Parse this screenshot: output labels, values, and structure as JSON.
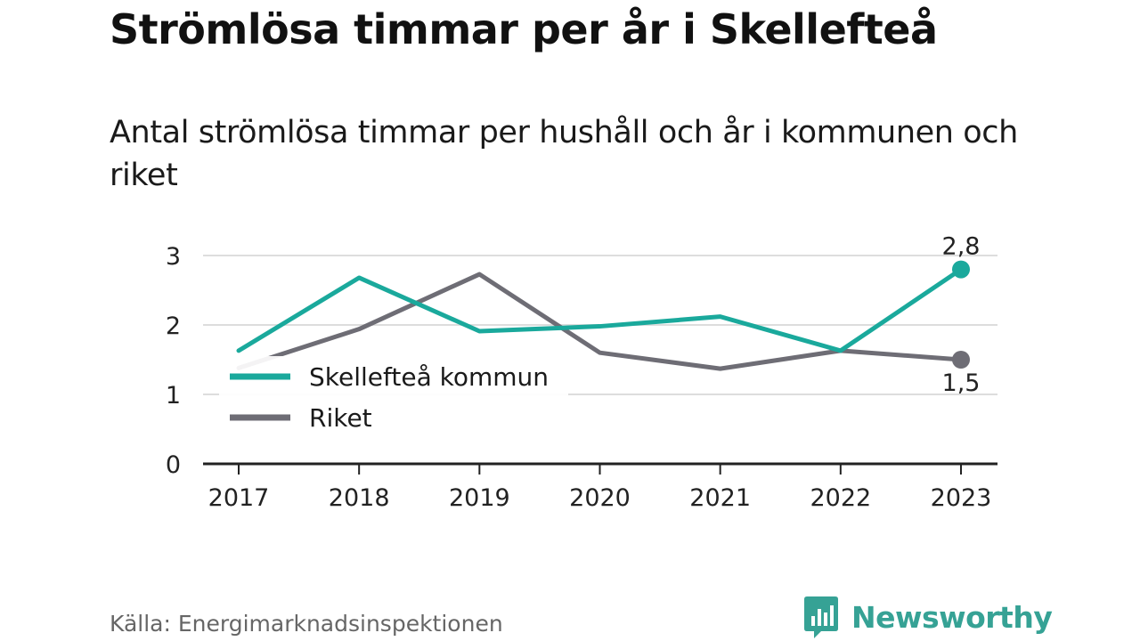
{
  "title": "Strömlösa timmar per år i Skellefteå",
  "subtitle": "Antal strömlösa timmar per hushåll och år i kommunen och riket",
  "source": "Källa: Energimarknadsinspektionen",
  "brand": {
    "name": "Newsworthy",
    "icon": "bar-chart-speech-bubble-icon"
  },
  "colors": {
    "kommun": "#1aa99c",
    "riket": "#6e6d75",
    "grid": "#dddddd",
    "axis": "#222222",
    "brand": "#36a295"
  },
  "chart_data": {
    "type": "line",
    "x": [
      "2017",
      "2018",
      "2019",
      "2020",
      "2021",
      "2022",
      "2023"
    ],
    "ylim": [
      0,
      3
    ],
    "yticks": [
      "0",
      "1",
      "2",
      "3"
    ],
    "grid": true,
    "legend_position": "bottom-left",
    "series": [
      {
        "name": "Skellefteå kommun",
        "key": "kommun",
        "values": [
          1.63,
          2.68,
          1.91,
          1.98,
          2.12,
          1.63,
          2.8
        ],
        "end_label": "2,8"
      },
      {
        "name": "Riket",
        "key": "riket",
        "values": [
          1.38,
          1.94,
          2.73,
          1.6,
          1.37,
          1.63,
          1.5
        ],
        "end_label": "1,5"
      }
    ]
  }
}
